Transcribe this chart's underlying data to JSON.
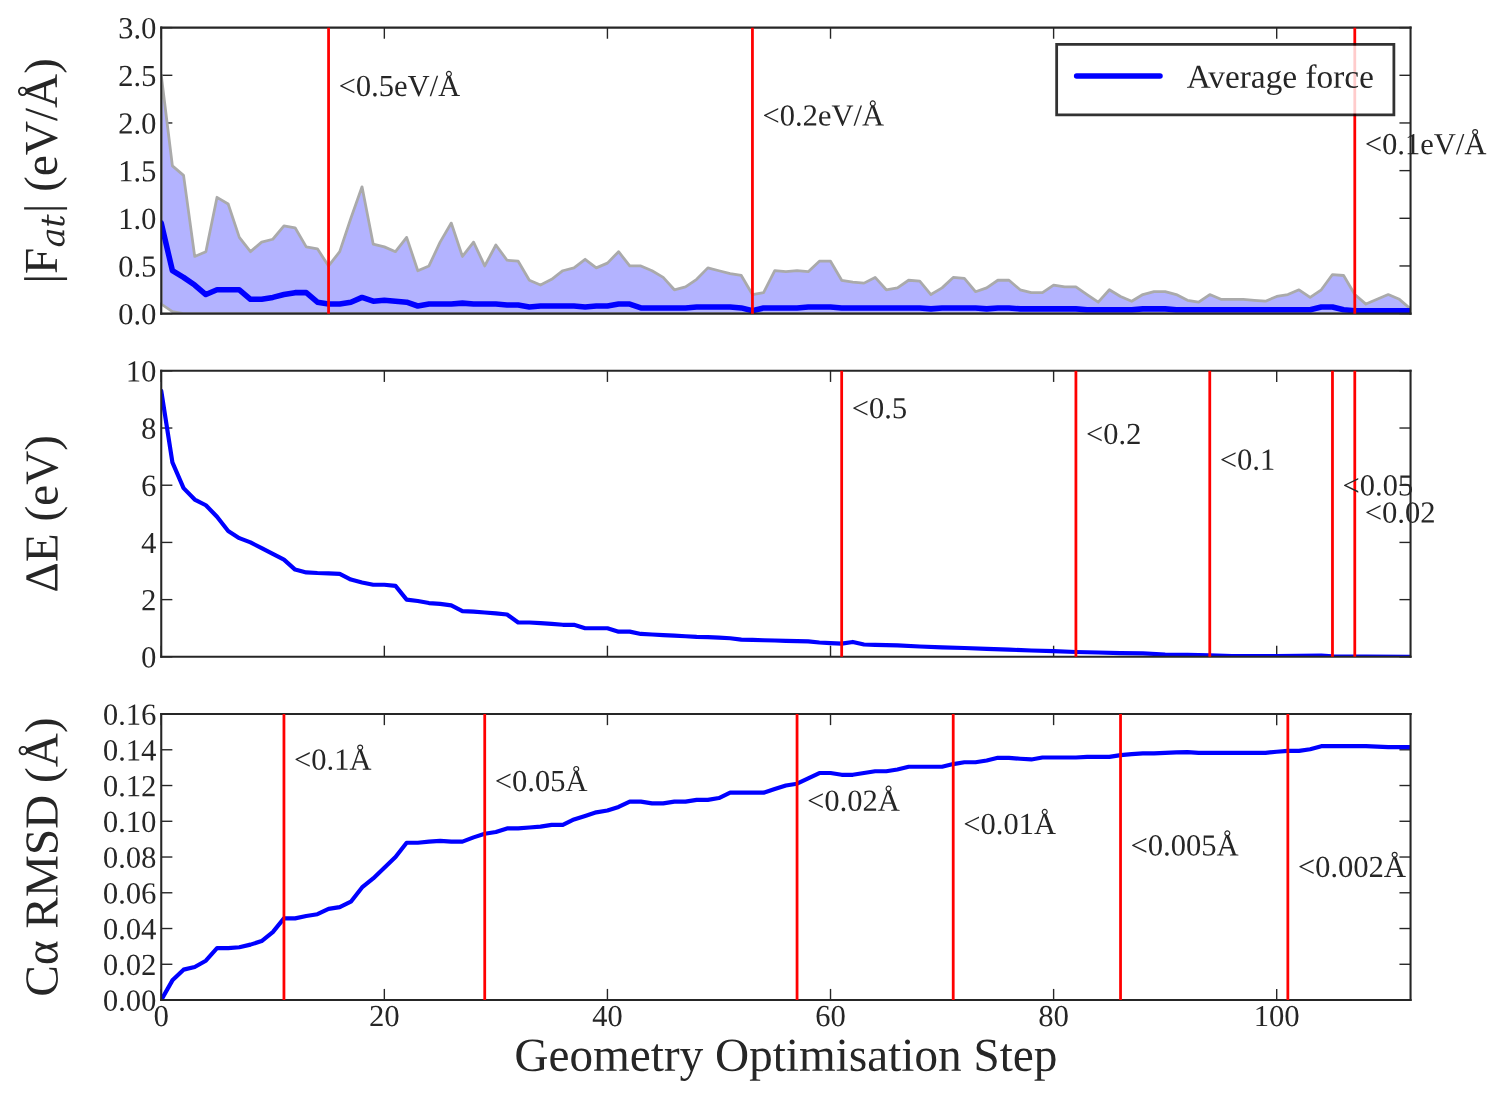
{
  "chart_data": [
    {
      "type": "line",
      "ylabel": "|F$_{at}$| (eV/Å)",
      "xlim": [
        0,
        112
      ],
      "xticks": [
        0,
        20,
        40,
        60,
        80,
        100
      ],
      "ylim": [
        0,
        3.0
      ],
      "yticks": [
        {
          "value": 0,
          "label": "0.0"
        },
        0.5,
        {
          "value": 1,
          "label": "1.0"
        },
        1.5,
        {
          "value": 2,
          "label": "2.0"
        },
        2.5,
        {
          "value": 3,
          "label": "3.0"
        }
      ],
      "tick_labels": "y",
      "grid": false,
      "legend": "top right",
      "marker": "none",
      "line_style": "solid",
      "series": [
        {
          "name": "Average force",
          "color": "#0000ff",
          "x": [
            0,
            1,
            2,
            3,
            4,
            5,
            6,
            7,
            8,
            9,
            10,
            11,
            12,
            13,
            14,
            15,
            16,
            17,
            18,
            19,
            20,
            21,
            22,
            23,
            24,
            25,
            26,
            27,
            28,
            29,
            30,
            31,
            32,
            33,
            34,
            35,
            36,
            37,
            38,
            39,
            40,
            41,
            42,
            43,
            44,
            45,
            46,
            47,
            48,
            49,
            50,
            51,
            52,
            53,
            54,
            55,
            56,
            57,
            58,
            59,
            60,
            61,
            62,
            63,
            64,
            65,
            66,
            67,
            68,
            69,
            70,
            71,
            72,
            73,
            74,
            75,
            76,
            77,
            78,
            79,
            80,
            81,
            82,
            83,
            84,
            85,
            86,
            87,
            88,
            89,
            90,
            91,
            92,
            93,
            94,
            95,
            96,
            97,
            98,
            99,
            100,
            101,
            102,
            103,
            104,
            105,
            106,
            107,
            108,
            109,
            110,
            111,
            112
          ],
          "values": [
            0.95,
            0.45,
            0.38,
            0.3,
            0.2,
            0.25,
            0.25,
            0.25,
            0.15,
            0.15,
            0.17,
            0.2,
            0.22,
            0.22,
            0.12,
            0.1,
            0.1,
            0.12,
            0.17,
            0.13,
            0.14,
            0.13,
            0.12,
            0.08,
            0.1,
            0.1,
            0.1,
            0.11,
            0.1,
            0.1,
            0.1,
            0.09,
            0.09,
            0.07,
            0.08,
            0.08,
            0.08,
            0.08,
            0.07,
            0.08,
            0.08,
            0.1,
            0.1,
            0.06,
            0.06,
            0.06,
            0.06,
            0.06,
            0.07,
            0.07,
            0.07,
            0.07,
            0.06,
            0.03,
            0.06,
            0.06,
            0.06,
            0.06,
            0.07,
            0.07,
            0.07,
            0.06,
            0.06,
            0.06,
            0.06,
            0.06,
            0.06,
            0.06,
            0.06,
            0.05,
            0.06,
            0.06,
            0.06,
            0.06,
            0.05,
            0.06,
            0.06,
            0.05,
            0.05,
            0.05,
            0.05,
            0.05,
            0.05,
            0.04,
            0.04,
            0.04,
            0.04,
            0.04,
            0.05,
            0.05,
            0.05,
            0.04,
            0.04,
            0.04,
            0.04,
            0.04,
            0.04,
            0.04,
            0.04,
            0.04,
            0.04,
            0.04,
            0.04,
            0.04,
            0.07,
            0.07,
            0.04,
            0.03,
            0.03,
            0.03,
            0.03,
            0.03,
            0.03
          ],
          "lower": [
            0.1,
            0.02,
            0,
            0,
            0,
            0,
            0,
            0,
            0,
            0,
            0,
            0,
            0,
            0,
            0,
            0,
            0,
            0,
            0,
            0,
            0,
            0,
            0,
            0,
            0,
            0,
            0,
            0,
            0,
            0,
            0,
            0,
            0,
            0,
            0,
            0,
            0,
            0,
            0,
            0,
            0,
            0,
            0,
            0,
            0,
            0,
            0,
            0,
            0,
            0,
            0,
            0,
            0,
            0,
            0,
            0,
            0,
            0,
            0,
            0,
            0,
            0,
            0,
            0,
            0,
            0,
            0,
            0,
            0,
            0,
            0,
            0,
            0,
            0,
            0,
            0,
            0,
            0,
            0,
            0,
            0,
            0,
            0,
            0,
            0,
            0,
            0,
            0,
            0,
            0,
            0,
            0,
            0,
            0,
            0,
            0,
            0,
            0,
            0,
            0,
            0,
            0,
            0,
            0,
            0,
            0,
            0,
            0,
            0,
            0,
            0,
            0,
            0
          ],
          "upper": [
            2.5,
            1.55,
            1.45,
            0.6,
            0.65,
            1.22,
            1.15,
            0.8,
            0.65,
            0.75,
            0.78,
            0.92,
            0.9,
            0.7,
            0.68,
            0.5,
            0.65,
            1.0,
            1.33,
            0.73,
            0.7,
            0.65,
            0.8,
            0.45,
            0.5,
            0.75,
            0.95,
            0.6,
            0.75,
            0.5,
            0.72,
            0.56,
            0.55,
            0.35,
            0.3,
            0.36,
            0.45,
            0.48,
            0.57,
            0.48,
            0.53,
            0.65,
            0.5,
            0.5,
            0.45,
            0.38,
            0.25,
            0.28,
            0.36,
            0.48,
            0.45,
            0.42,
            0.4,
            0.2,
            0.22,
            0.45,
            0.44,
            0.45,
            0.44,
            0.55,
            0.55,
            0.35,
            0.33,
            0.32,
            0.38,
            0.25,
            0.27,
            0.35,
            0.34,
            0.2,
            0.27,
            0.38,
            0.37,
            0.23,
            0.27,
            0.35,
            0.35,
            0.25,
            0.22,
            0.22,
            0.3,
            0.28,
            0.28,
            0.2,
            0.12,
            0.25,
            0.18,
            0.13,
            0.2,
            0.23,
            0.23,
            0.2,
            0.14,
            0.12,
            0.2,
            0.15,
            0.15,
            0.15,
            0.14,
            0.13,
            0.18,
            0.2,
            0.25,
            0.17,
            0.25,
            0.41,
            0.4,
            0.2,
            0.1,
            0.15,
            0.2,
            0.15,
            0.05
          ]
        }
      ],
      "ref_lines": [
        {
          "axis": "x",
          "value": 15,
          "color": "#ff0000"
        },
        {
          "axis": "x",
          "value": 53,
          "color": "#ff0000"
        },
        {
          "axis": "x",
          "value": 107,
          "color": "#ff0000"
        }
      ],
      "annotations": [
        {
          "text": "<0.5eV/Å",
          "x": 15,
          "y": 2.36
        },
        {
          "text": "<0.2eV/Å",
          "x": 53,
          "y": 2.05
        },
        {
          "text": "<0.1eV/Å",
          "x": 107,
          "y": 1.75
        }
      ]
    },
    {
      "type": "line",
      "ylabel": "ΔE (eV)",
      "xlim": [
        0,
        112
      ],
      "xticks": [
        0,
        20,
        40,
        60,
        80,
        100
      ],
      "ylim": [
        0,
        10
      ],
      "yticks": [
        0,
        2,
        4,
        6,
        8,
        10
      ],
      "tick_labels": "y",
      "grid": false,
      "marker": "none",
      "line_style": "solid",
      "series": [
        {
          "color": "#0000ff",
          "x": [
            0,
            1,
            2,
            3,
            4,
            5,
            6,
            7,
            8,
            9,
            10,
            11,
            12,
            13,
            14,
            15,
            16,
            17,
            18,
            19,
            20,
            21,
            22,
            23,
            24,
            25,
            26,
            27,
            28,
            29,
            30,
            31,
            32,
            33,
            34,
            35,
            36,
            37,
            38,
            39,
            40,
            41,
            42,
            43,
            44,
            45,
            46,
            47,
            48,
            49,
            50,
            51,
            52,
            53,
            54,
            55,
            56,
            57,
            58,
            59,
            60,
            61,
            62,
            63,
            64,
            65,
            66,
            68,
            70,
            72,
            74,
            76,
            78,
            80,
            82,
            84,
            86,
            88,
            90,
            92,
            94,
            96,
            100,
            104,
            105,
            108,
            112
          ],
          "values": [
            9.3,
            6.8,
            5.9,
            5.5,
            5.3,
            4.9,
            4.4,
            4.15,
            4.0,
            3.8,
            3.6,
            3.4,
            3.05,
            2.95,
            2.93,
            2.92,
            2.9,
            2.7,
            2.6,
            2.52,
            2.52,
            2.48,
            2.0,
            1.95,
            1.88,
            1.85,
            1.8,
            1.6,
            1.58,
            1.55,
            1.52,
            1.48,
            1.2,
            1.2,
            1.18,
            1.15,
            1.12,
            1.12,
            1.0,
            1.0,
            1.0,
            0.88,
            0.88,
            0.8,
            0.78,
            0.76,
            0.74,
            0.72,
            0.7,
            0.69,
            0.67,
            0.65,
            0.6,
            0.59,
            0.58,
            0.57,
            0.56,
            0.55,
            0.54,
            0.5,
            0.48,
            0.46,
            0.52,
            0.43,
            0.42,
            0.41,
            0.4,
            0.36,
            0.33,
            0.31,
            0.28,
            0.25,
            0.22,
            0.2,
            0.17,
            0.15,
            0.13,
            0.12,
            0.08,
            0.07,
            0.05,
            0.03,
            0.03,
            0.04,
            0.02,
            0.01,
            0.0
          ]
        }
      ],
      "ref_lines": [
        {
          "axis": "x",
          "value": 61,
          "color": "#ff0000"
        },
        {
          "axis": "x",
          "value": 82,
          "color": "#ff0000"
        },
        {
          "axis": "x",
          "value": 94,
          "color": "#ff0000"
        },
        {
          "axis": "x",
          "value": 105,
          "color": "#ff0000"
        },
        {
          "axis": "x",
          "value": 107,
          "color": "#ff0000"
        }
      ],
      "annotations": [
        {
          "text": "<0.5",
          "x": 61,
          "y": 8.6
        },
        {
          "text": "<0.2",
          "x": 82,
          "y": 7.7
        },
        {
          "text": "<0.1",
          "x": 94,
          "y": 6.8
        },
        {
          "text": "<0.05",
          "x": 105,
          "y": 5.9
        },
        {
          "text": "<0.02",
          "x": 107,
          "y": 4.95
        }
      ]
    },
    {
      "type": "line",
      "ylabel": "Cα RMSD (Å)",
      "xlabel": "Geometry Optimisation Step",
      "xlim": [
        0,
        112
      ],
      "xticks": [
        0,
        20,
        40,
        60,
        80,
        100
      ],
      "ylim": [
        0,
        0.16
      ],
      "yticks": [
        {
          "value": 0,
          "label": "0.00"
        },
        {
          "value": 0.02,
          "label": "0.02"
        },
        {
          "value": 0.04,
          "label": "0.04"
        },
        {
          "value": 0.06,
          "label": "0.06"
        },
        {
          "value": 0.08,
          "label": "0.08"
        },
        {
          "value": 0.1,
          "label": "0.10"
        },
        {
          "value": 0.12,
          "label": "0.12"
        },
        {
          "value": 0.14,
          "label": "0.14"
        },
        {
          "value": 0.16,
          "label": "0.16"
        }
      ],
      "grid": false,
      "marker": "none",
      "line_style": "solid",
      "series": [
        {
          "color": "#0000ff",
          "x": [
            0,
            1,
            2,
            3,
            4,
            5,
            6,
            7,
            8,
            9,
            10,
            11,
            12,
            13,
            14,
            15,
            16,
            17,
            18,
            19,
            20,
            21,
            22,
            23,
            24,
            25,
            26,
            27,
            28,
            29,
            30,
            31,
            32,
            33,
            34,
            35,
            36,
            37,
            38,
            39,
            40,
            41,
            42,
            43,
            44,
            45,
            46,
            47,
            48,
            49,
            50,
            51,
            52,
            53,
            54,
            55,
            56,
            57,
            58,
            59,
            60,
            61,
            62,
            63,
            64,
            65,
            66,
            67,
            68,
            69,
            70,
            71,
            72,
            73,
            74,
            75,
            76,
            77,
            78,
            79,
            80,
            81,
            82,
            83,
            84,
            85,
            86,
            87,
            88,
            89,
            90,
            91,
            92,
            93,
            94,
            95,
            96,
            97,
            98,
            99,
            100,
            101,
            102,
            103,
            104,
            105,
            106,
            107,
            108,
            109,
            110,
            111,
            112
          ],
          "values": [
            0,
            0.011,
            0.017,
            0.0185,
            0.022,
            0.029,
            0.029,
            0.0295,
            0.031,
            0.033,
            0.038,
            0.0457,
            0.0457,
            0.047,
            0.048,
            0.051,
            0.052,
            0.055,
            0.063,
            0.068,
            0.074,
            0.08,
            0.088,
            0.088,
            0.0886,
            0.089,
            0.0886,
            0.0886,
            0.091,
            0.093,
            0.094,
            0.096,
            0.096,
            0.0965,
            0.097,
            0.098,
            0.098,
            0.101,
            0.103,
            0.105,
            0.106,
            0.108,
            0.111,
            0.111,
            0.11,
            0.11,
            0.111,
            0.111,
            0.112,
            0.112,
            0.113,
            0.116,
            0.116,
            0.116,
            0.116,
            0.118,
            0.12,
            0.121,
            0.124,
            0.127,
            0.127,
            0.126,
            0.126,
            0.127,
            0.128,
            0.128,
            0.129,
            0.1305,
            0.1305,
            0.1305,
            0.1305,
            0.132,
            0.133,
            0.133,
            0.134,
            0.1355,
            0.1355,
            0.135,
            0.1346,
            0.1357,
            0.1357,
            0.1357,
            0.1357,
            0.136,
            0.136,
            0.136,
            0.137,
            0.1376,
            0.138,
            0.138,
            0.1383,
            0.1385,
            0.1387,
            0.1383,
            0.1383,
            0.1383,
            0.1383,
            0.1383,
            0.1383,
            0.1383,
            0.1389,
            0.1394,
            0.1394,
            0.1403,
            0.142,
            0.142,
            0.142,
            0.142,
            0.142,
            0.1418,
            0.1415,
            0.1415,
            0.1415
          ]
        }
      ],
      "ref_lines": [
        {
          "axis": "x",
          "value": 11,
          "color": "#ff0000"
        },
        {
          "axis": "x",
          "value": 29,
          "color": "#ff0000"
        },
        {
          "axis": "x",
          "value": 57,
          "color": "#ff0000"
        },
        {
          "axis": "x",
          "value": 71,
          "color": "#ff0000"
        },
        {
          "axis": "x",
          "value": 86,
          "color": "#ff0000"
        },
        {
          "axis": "x",
          "value": 101,
          "color": "#ff0000"
        }
      ],
      "annotations": [
        {
          "text": "<0.1Å",
          "x": 11,
          "y": 0.133
        },
        {
          "text": "<0.05Å",
          "x": 29,
          "y": 0.121
        },
        {
          "text": "<0.02Å",
          "x": 57,
          "y": 0.11
        },
        {
          "text": "<0.01Å",
          "x": 71,
          "y": 0.097
        },
        {
          "text": "<0.005Å",
          "x": 86,
          "y": 0.085
        },
        {
          "text": "<0.002Å",
          "x": 101,
          "y": 0.073
        }
      ]
    }
  ]
}
